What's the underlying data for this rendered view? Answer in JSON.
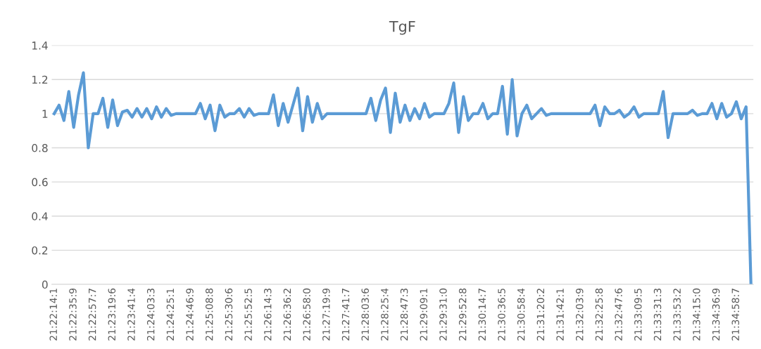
{
  "chart_data": {
    "type": "line",
    "title": "TgF",
    "categories": [
      "21:22:14:1",
      null,
      null,
      null,
      "21:22:35:9",
      null,
      null,
      null,
      "21:22:57:7",
      null,
      null,
      null,
      "21:23:19:6",
      null,
      null,
      null,
      "21:23:41:4",
      null,
      null,
      null,
      "21:24:03:3",
      null,
      null,
      null,
      "21:24:25:1",
      null,
      null,
      null,
      "21:24:46:9",
      null,
      null,
      null,
      "21:25:08:8",
      null,
      null,
      null,
      "21:25:30:6",
      null,
      null,
      null,
      "21:25:52:5",
      null,
      null,
      null,
      "21:26:14:3",
      null,
      null,
      null,
      "21:26:36:2",
      null,
      null,
      null,
      "21:26:58:0",
      null,
      null,
      null,
      "21:27:19:9",
      null,
      null,
      null,
      "21:27:41:7",
      null,
      null,
      null,
      "21:28:03:6",
      null,
      null,
      null,
      "21:28:25:4",
      null,
      null,
      null,
      "21:28:47:3",
      null,
      null,
      null,
      "21:29:09:1",
      null,
      null,
      null,
      "21:29:31:0",
      null,
      null,
      null,
      "21:29:52:8",
      null,
      null,
      null,
      "21:30:14:7",
      null,
      null,
      null,
      "21:30:36:5",
      null,
      null,
      null,
      "21:30:58:4",
      null,
      null,
      null,
      "21:31:20:2",
      null,
      null,
      null,
      "21:31:42:1",
      null,
      null,
      null,
      "21:32:03:9",
      null,
      null,
      null,
      "21:32:25:8",
      null,
      null,
      null,
      "21:32:47:6",
      null,
      null,
      null,
      "21:33:09:5",
      null,
      null,
      null,
      "21:33:31:3",
      null,
      null,
      null,
      "21:33:53:2",
      null,
      null,
      null,
      "21:34:15:0",
      null,
      null,
      null,
      "21:34:36:9",
      null,
      null,
      null,
      "21:34:58:7",
      null,
      null,
      null
    ],
    "series": [
      {
        "color": "#5b9bd5",
        "values": [
          1.0,
          1.05,
          0.96,
          1.13,
          0.92,
          1.11,
          1.24,
          0.8,
          1.0,
          1.0,
          1.09,
          0.92,
          1.08,
          0.93,
          1.01,
          1.02,
          0.98,
          1.03,
          0.98,
          1.03,
          0.97,
          1.04,
          0.98,
          1.03,
          0.99,
          1.0,
          1.0,
          1.0,
          1.0,
          1.0,
          1.06,
          0.97,
          1.05,
          0.9,
          1.05,
          0.98,
          1.0,
          1.0,
          1.03,
          0.98,
          1.03,
          0.99,
          1.0,
          1.0,
          1.0,
          1.11,
          0.93,
          1.06,
          0.95,
          1.05,
          1.15,
          0.9,
          1.1,
          0.95,
          1.06,
          0.97,
          1.0,
          1.0,
          1.0,
          1.0,
          1.0,
          1.0,
          1.0,
          1.0,
          1.0,
          1.09,
          0.96,
          1.08,
          1.15,
          0.89,
          1.12,
          0.95,
          1.05,
          0.96,
          1.03,
          0.97,
          1.06,
          0.98,
          1.0,
          1.0,
          1.0,
          1.06,
          1.18,
          0.89,
          1.1,
          0.96,
          1.0,
          1.0,
          1.06,
          0.97,
          1.0,
          1.0,
          1.16,
          0.88,
          1.2,
          0.87,
          1.0,
          1.05,
          0.97,
          1.0,
          1.03,
          0.99,
          1.0,
          1.0,
          1.0,
          1.0,
          1.0,
          1.0,
          1.0,
          1.0,
          1.0,
          1.05,
          0.93,
          1.04,
          1.0,
          1.0,
          1.02,
          0.98,
          1.0,
          1.04,
          0.98,
          1.0,
          1.0,
          1.0,
          1.0,
          1.13,
          0.86,
          1.0,
          1.0,
          1.0,
          1.0,
          1.02,
          0.99,
          1.0,
          1.0,
          1.06,
          0.97,
          1.06,
          0.98,
          1.0,
          1.07,
          0.97,
          1.04,
          0
        ]
      }
    ],
    "ylim": [
      0,
      1.4
    ],
    "yticks": [
      0,
      0.2,
      0.4,
      0.6,
      0.8,
      1,
      1.2,
      1.4
    ],
    "grid": "y",
    "legend": false,
    "marker": "none",
    "line_style": "solid"
  }
}
